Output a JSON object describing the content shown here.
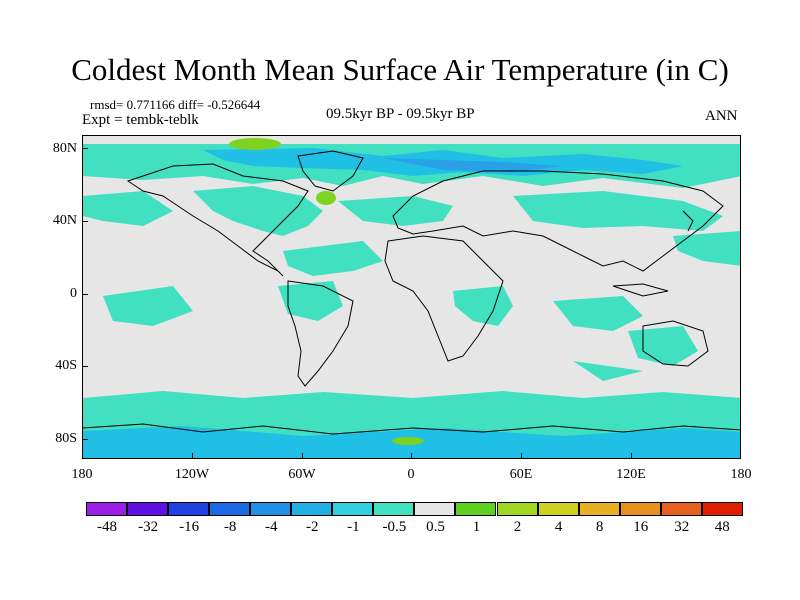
{
  "title": "Coldest Month Mean Surface Air Temperature (in C)",
  "stats": "rmsd= 0.771166 diff= -0.526644",
  "expt": "Expt = tembk-teblk",
  "subtitle": "09.5kyr BP - 09.5kyr BP",
  "season": "ANN",
  "lat_labels": [
    "80N",
    "40N",
    "0",
    "40S",
    "80S"
  ],
  "lon_labels": [
    "180",
    "120W",
    "60W",
    "0",
    "60E",
    "120E",
    "180"
  ],
  "colors": {
    "background": "#e6e6e6",
    "coast": "#000000",
    "neg_small": "#40e0c0",
    "neg_mid": "#20bfe6",
    "neg_large": "#2aa0e6",
    "pos_small": "#7ed320"
  },
  "colorbar": {
    "colors": [
      "#9b1ee6",
      "#6010e0",
      "#2040e0",
      "#1a6ae6",
      "#2090e6",
      "#20b0e6",
      "#30d0e0",
      "#40e0c0",
      "#e6e6e6",
      "#60d020",
      "#a0d820",
      "#d0d020",
      "#e6b020",
      "#e69020",
      "#e66020",
      "#e02000"
    ],
    "labels": [
      "-48",
      "-32",
      "-16",
      "-8",
      "-4",
      "-2",
      "-1",
      "-0.5",
      "0.5",
      "1",
      "2",
      "4",
      "8",
      "16",
      "32",
      "48"
    ]
  }
}
